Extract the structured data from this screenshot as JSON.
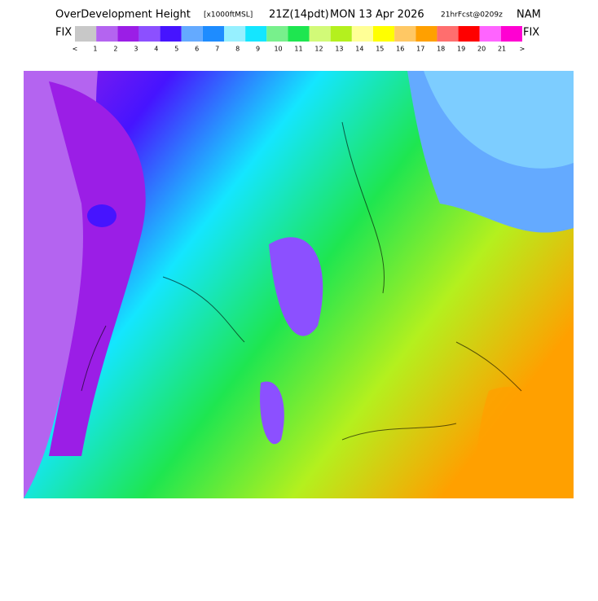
{
  "header": {
    "title": "OverDevelopment Height",
    "units": "[x1000ftMSL]",
    "time": "21Z(14pdt)",
    "date": "MON 13 Apr 2026",
    "forecast": "21hrFcst@0209z",
    "model": "NAM"
  },
  "legend": {
    "left_label": "FIX",
    "right_label": "FIX",
    "colors": [
      "#c8c8c8",
      "#b464f0",
      "#9b1ee6",
      "#8c50ff",
      "#4614ff",
      "#64aaff",
      "#1e8cff",
      "#96f0ff",
      "#14e6ff",
      "#78f08c",
      "#1ee650",
      "#d2fa78",
      "#b4f01e",
      "#ffff96",
      "#ffff00",
      "#ffc864",
      "#ffa000",
      "#ff6e6e",
      "#ff0000",
      "#ff64ff",
      "#ff00d2"
    ],
    "labels": [
      "<",
      "1",
      "2",
      "3",
      "4",
      "5",
      "6",
      "7",
      "8",
      "9",
      "10",
      "11",
      "12",
      "13",
      "14",
      "15",
      "16",
      "17",
      "18",
      "19",
      "20",
      "21",
      ">"
    ]
  }
}
